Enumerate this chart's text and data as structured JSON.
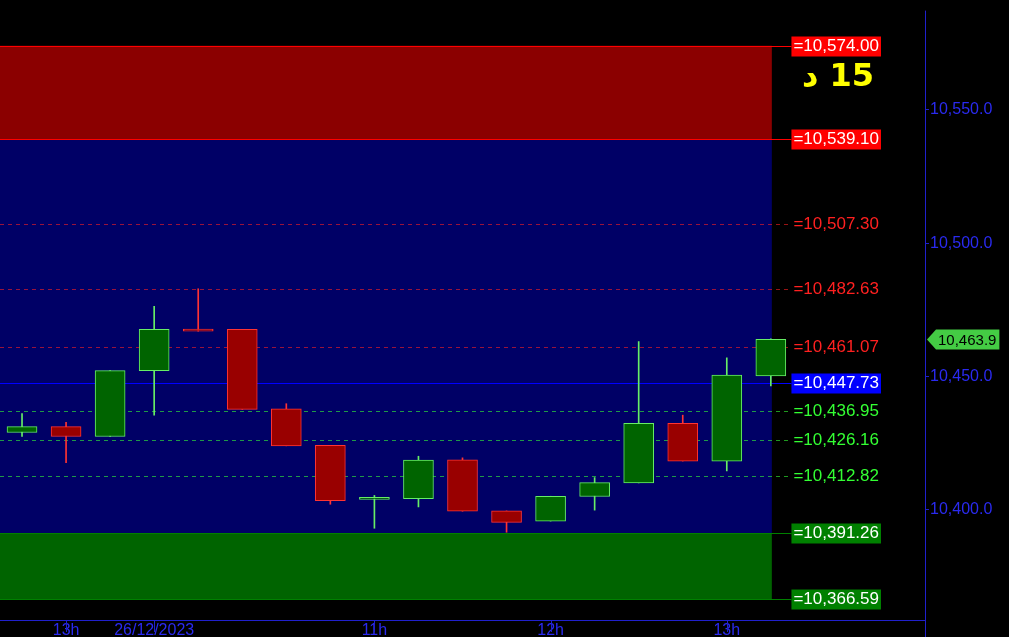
{
  "chart_data": {
    "type": "candlestick",
    "categories": [
      null,
      "13h",
      null,
      "26/12/2023",
      null,
      null,
      null,
      null,
      "11h",
      null,
      null,
      null,
      "12h",
      null,
      null,
      null,
      "13h",
      null,
      null,
      null,
      null
    ],
    "ohlc": [
      [
        10429.0,
        10436.1,
        10427.5,
        10431.2
      ],
      [
        10431.2,
        10432.8,
        10417.7,
        10427.5
      ],
      [
        10427.5,
        10452.2,
        10427.5,
        10452.2
      ],
      [
        10452.2,
        10476.3,
        10435.5,
        10467.7
      ],
      [
        10467.4,
        10482.9,
        10467.0,
        10467.0
      ],
      [
        10467.7,
        10467.7,
        10437.7,
        10437.7
      ],
      [
        10437.9,
        10439.8,
        10424.0,
        10424.0
      ],
      [
        10424.2,
        10424.2,
        10402.1,
        10403.4
      ],
      [
        10403.9,
        10405.4,
        10393.1,
        10403.9
      ],
      [
        10404.2,
        10420.1,
        10401.1,
        10418.7
      ],
      [
        10418.8,
        10419.5,
        10399.5,
        10399.5
      ],
      [
        10399.6,
        10399.6,
        10391.6,
        10395.3
      ],
      [
        10395.8,
        10405.1,
        10395.8,
        10405.1
      ],
      [
        10405.0,
        10412.1,
        10399.9,
        10410.2
      ],
      [
        10410.1,
        10463.1,
        10410.1,
        10432.4
      ],
      [
        10432.4,
        10435.5,
        10418.3,
        10418.3
      ],
      [
        10418.3,
        10457.0,
        10414.6,
        10450.5
      ],
      [
        10450.2,
        10464.1,
        10446.5,
        10463.9
      ],
      null,
      null,
      null
    ],
    "ylim": [
      10358.7,
      10587.2
    ],
    "yticks": [
      {
        "value": 10400,
        "label": "10,400.0"
      },
      {
        "value": 10450,
        "label": "10,450.0"
      },
      {
        "value": 10500,
        "label": "10,500.0"
      },
      {
        "value": 10550,
        "label": "10,550.0"
      }
    ],
    "grid": false,
    "bands": [
      {
        "axis": "y",
        "from": 10539.1,
        "to": 10574,
        "color": "#8b0000"
      },
      {
        "axis": "y",
        "from": 10391.26,
        "to": 10539.1,
        "color": "#000066"
      },
      {
        "axis": "y",
        "from": 10366.59,
        "to": 10391.26,
        "color": "#006400"
      }
    ],
    "ref_lines": [
      {
        "axis": "y",
        "value": 10574,
        "label": "=10,574.00",
        "color": "#ff0000",
        "line_style": "solid"
      },
      {
        "axis": "y",
        "value": 10539.1,
        "label": "=10,539.10",
        "color": "#ff0000",
        "line_style": "solid"
      },
      {
        "axis": "y",
        "value": 10507.3,
        "label": "=10,507.30",
        "color": "#ff2020",
        "line_style": "dashed"
      },
      {
        "axis": "y",
        "value": 10482.63,
        "label": "=10,482.63",
        "color": "#ff2020",
        "line_style": "dashed"
      },
      {
        "axis": "y",
        "value": 10461.07,
        "label": "=10,461.07",
        "color": "#ff2020",
        "line_style": "dashed"
      },
      {
        "axis": "y",
        "value": 10447.73,
        "label": "=10,447.73",
        "color": "#0000ff",
        "line_style": "solid"
      },
      {
        "axis": "y",
        "value": 10436.95,
        "label": "=10,436.95",
        "color": "#33ff33",
        "line_style": "dashed"
      },
      {
        "axis": "y",
        "value": 10426.16,
        "label": "=10,426.16",
        "color": "#33ff33",
        "line_style": "dashed"
      },
      {
        "axis": "y",
        "value": 10412.82,
        "label": "=10,412.82",
        "color": "#33ff33",
        "line_style": "dashed"
      },
      {
        "axis": "y",
        "value": 10391.26,
        "label": "=10,391.26",
        "color": "#008000",
        "line_style": "solid"
      },
      {
        "axis": "y",
        "value": 10366.59,
        "label": "=10,366.59",
        "color": "#008000",
        "line_style": "solid"
      }
    ],
    "annotations": [
      "15 د",
      "10,463.9"
    ]
  }
}
